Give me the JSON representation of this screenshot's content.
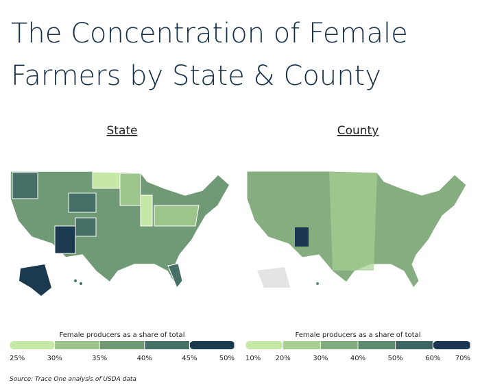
{
  "header": {
    "title": "The Concentration of Female Farmers by State & County"
  },
  "maps": [
    {
      "heading": "State",
      "legend": {
        "title": "Female producers as a share of total",
        "colors": [
          "#c6e8a6",
          "#9dc48a",
          "#6f9a75",
          "#456f67",
          "#1b3a4f"
        ],
        "ticks": [
          {
            "value": 25,
            "label": "25%"
          },
          {
            "value": 30,
            "label": "30%"
          },
          {
            "value": 35,
            "label": "35%"
          },
          {
            "value": 40,
            "label": "40%"
          },
          {
            "value": 45,
            "label": "45%"
          },
          {
            "value": 50,
            "label": "50%"
          }
        ]
      }
    },
    {
      "heading": "County",
      "legend": {
        "title": "Female producers as a share of total",
        "colors": [
          "#c6e8a6",
          "#a8cf92",
          "#82ad7f",
          "#5e8a70",
          "#3d6562",
          "#1a3650"
        ],
        "ticks": [
          {
            "value": 10,
            "label": "10%"
          },
          {
            "value": 20,
            "label": "20%"
          },
          {
            "value": 30,
            "label": "30%"
          },
          {
            "value": 40,
            "label": "40%"
          },
          {
            "value": 50,
            "label": "50%"
          },
          {
            "value": 60,
            "label": "60%"
          },
          {
            "value": 70,
            "label": "70%"
          }
        ]
      }
    }
  ],
  "source": "Source: Trace One analysis of USDA data"
}
